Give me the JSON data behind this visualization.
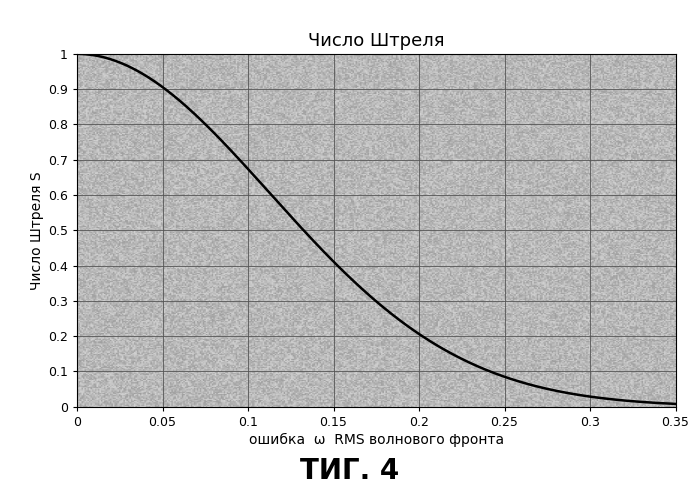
{
  "title": "Число Штреля",
  "xlabel": "ошибка  ω  RMS волнового фронта",
  "ylabel": "Число Штреля S",
  "xlim": [
    0,
    0.35
  ],
  "ylim": [
    0,
    1.0
  ],
  "xticks": [
    0,
    0.05,
    0.1,
    0.15,
    0.2,
    0.25,
    0.3,
    0.35
  ],
  "yticks": [
    0,
    0.1,
    0.2,
    0.3,
    0.4,
    0.5,
    0.6,
    0.7,
    0.8,
    0.9,
    1.0
  ],
  "line_color": "#000000",
  "line_width": 1.8,
  "background_color": "#b8b8b8",
  "grid_color": "#888888",
  "outer_background": "#d8d8d8",
  "caption": "ΤИГ. 4",
  "caption_fontsize": 20,
  "title_fontsize": 13,
  "xlabel_fontsize": 10,
  "ylabel_fontsize": 10,
  "tick_fontsize": 9,
  "formula_k": 39.478
}
